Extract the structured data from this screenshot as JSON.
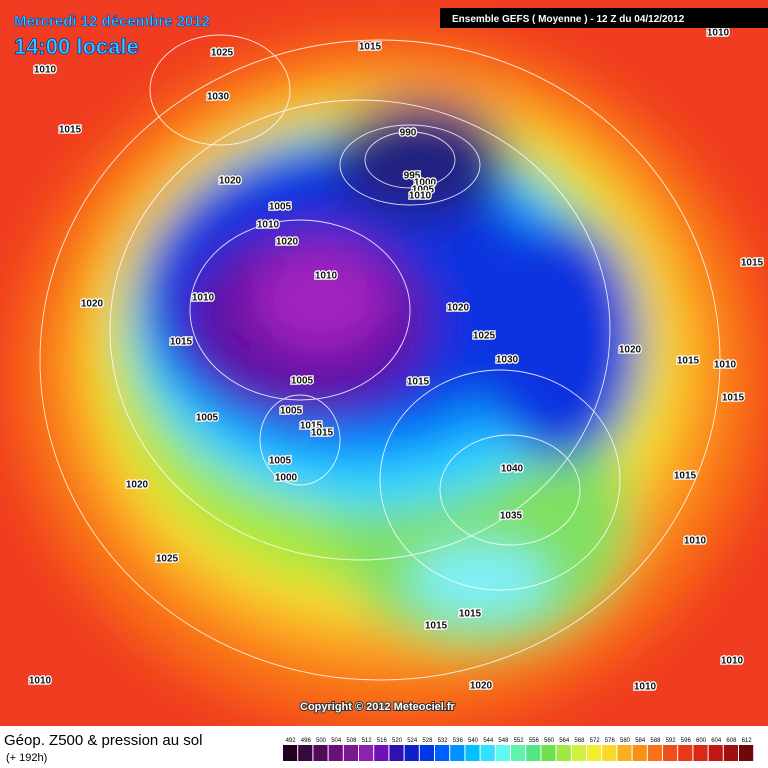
{
  "header": {
    "date": "Mercredi 12 décembre 2012",
    "time": "14:00 locale",
    "model": "Ensemble GEFS ( Moyenne )  -  12 Z du 04/12/2012"
  },
  "isobars": [
    1015,
    1025,
    1010,
    1030,
    1015,
    990,
    1020,
    995,
    1000,
    1005,
    1010,
    1005,
    1010,
    1020,
    1010,
    1020,
    1010,
    1020,
    1025,
    1015,
    1030,
    1020,
    1015,
    1010,
    1005,
    1015,
    1015,
    1005,
    1005,
    1015,
    1015,
    1040,
    1005,
    1000,
    1015,
    1020,
    1035,
    1010,
    1025,
    1015,
    1015,
    1010,
    1010,
    1020,
    1010,
    1015,
    1010
  ],
  "copyright": "Copyright © 2012 Meteociel.fr",
  "footer": {
    "title": "Géop. Z500 & pression au sol",
    "lead": "(+ 192h)"
  },
  "scale": {
    "labels": [
      492,
      496,
      500,
      504,
      508,
      512,
      516,
      520,
      524,
      528,
      532,
      536,
      540,
      544,
      548,
      552,
      556,
      560,
      564,
      568,
      572,
      576,
      580,
      584,
      588,
      592,
      596,
      600,
      604,
      608,
      612
    ]
  }
}
